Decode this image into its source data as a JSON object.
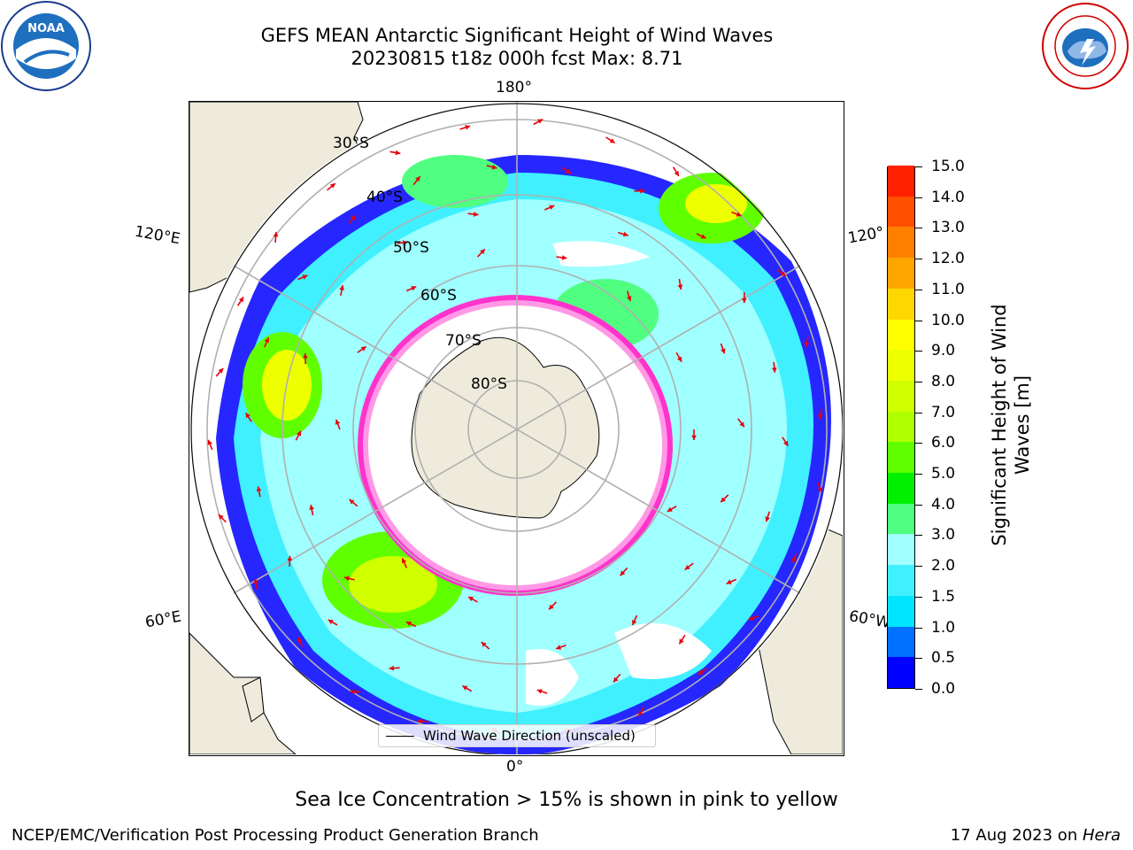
{
  "title": {
    "line1": "GEFS MEAN Antarctic Significant Height of Wind Waves",
    "line2": "20230815 t18z 000h fcst   Max: 8.71"
  },
  "logos": {
    "left": "NOAA",
    "left_ring": "NATIONAL OCEANIC AND ATMOSPHERIC ADMINISTRATION · U.S. DEPARTMENT OF COMMERCE",
    "right_ring": "NATIONAL WEATHER SERVICE"
  },
  "map": {
    "projection": "south-polar-stereographic",
    "longitude_labels": {
      "top": "180°",
      "bottom": "0°",
      "upper_left": "120°E",
      "upper_right": "120°",
      "lower_left": "60°E",
      "lower_right": "60°W"
    },
    "latitude_labels": [
      "30°S",
      "40°S",
      "50°S",
      "60°S",
      "70°S",
      "80°S"
    ],
    "legend_label": "Wind Wave Direction (unscaled)",
    "land_color": "#efebdc",
    "arrow_color": "#e8000b",
    "graticule_color": "#b0b0b0",
    "sea_ice_colors": [
      "#ff33cc",
      "#ffe14d"
    ]
  },
  "colorbar": {
    "label": "Significant Height of Wind Waves [m]",
    "ticks": [
      "0.0",
      "0.5",
      "1.0",
      "1.5",
      "2.0",
      "3.0",
      "4.0",
      "5.0",
      "6.0",
      "7.0",
      "8.0",
      "9.0",
      "10.0",
      "11.0",
      "12.0",
      "13.0",
      "14.0",
      "15.0"
    ],
    "colors": [
      "#0000ff",
      "#0070ff",
      "#00e5ff",
      "#40f0ff",
      "#a0ffff",
      "#50ff80",
      "#00f000",
      "#60ff00",
      "#b0ff00",
      "#d0ff00",
      "#eeff00",
      "#ffff00",
      "#ffd700",
      "#ffa500",
      "#ff8000",
      "#ff5000",
      "#ff2000"
    ]
  },
  "footer": {
    "note": "Sea Ice Concentration > 15% is shown in pink to yellow",
    "left": "NCEP/EMC/Verification Post Processing Product Generation Branch",
    "right_date": "17 Aug 2023 on ",
    "right_machine": "Hera"
  }
}
